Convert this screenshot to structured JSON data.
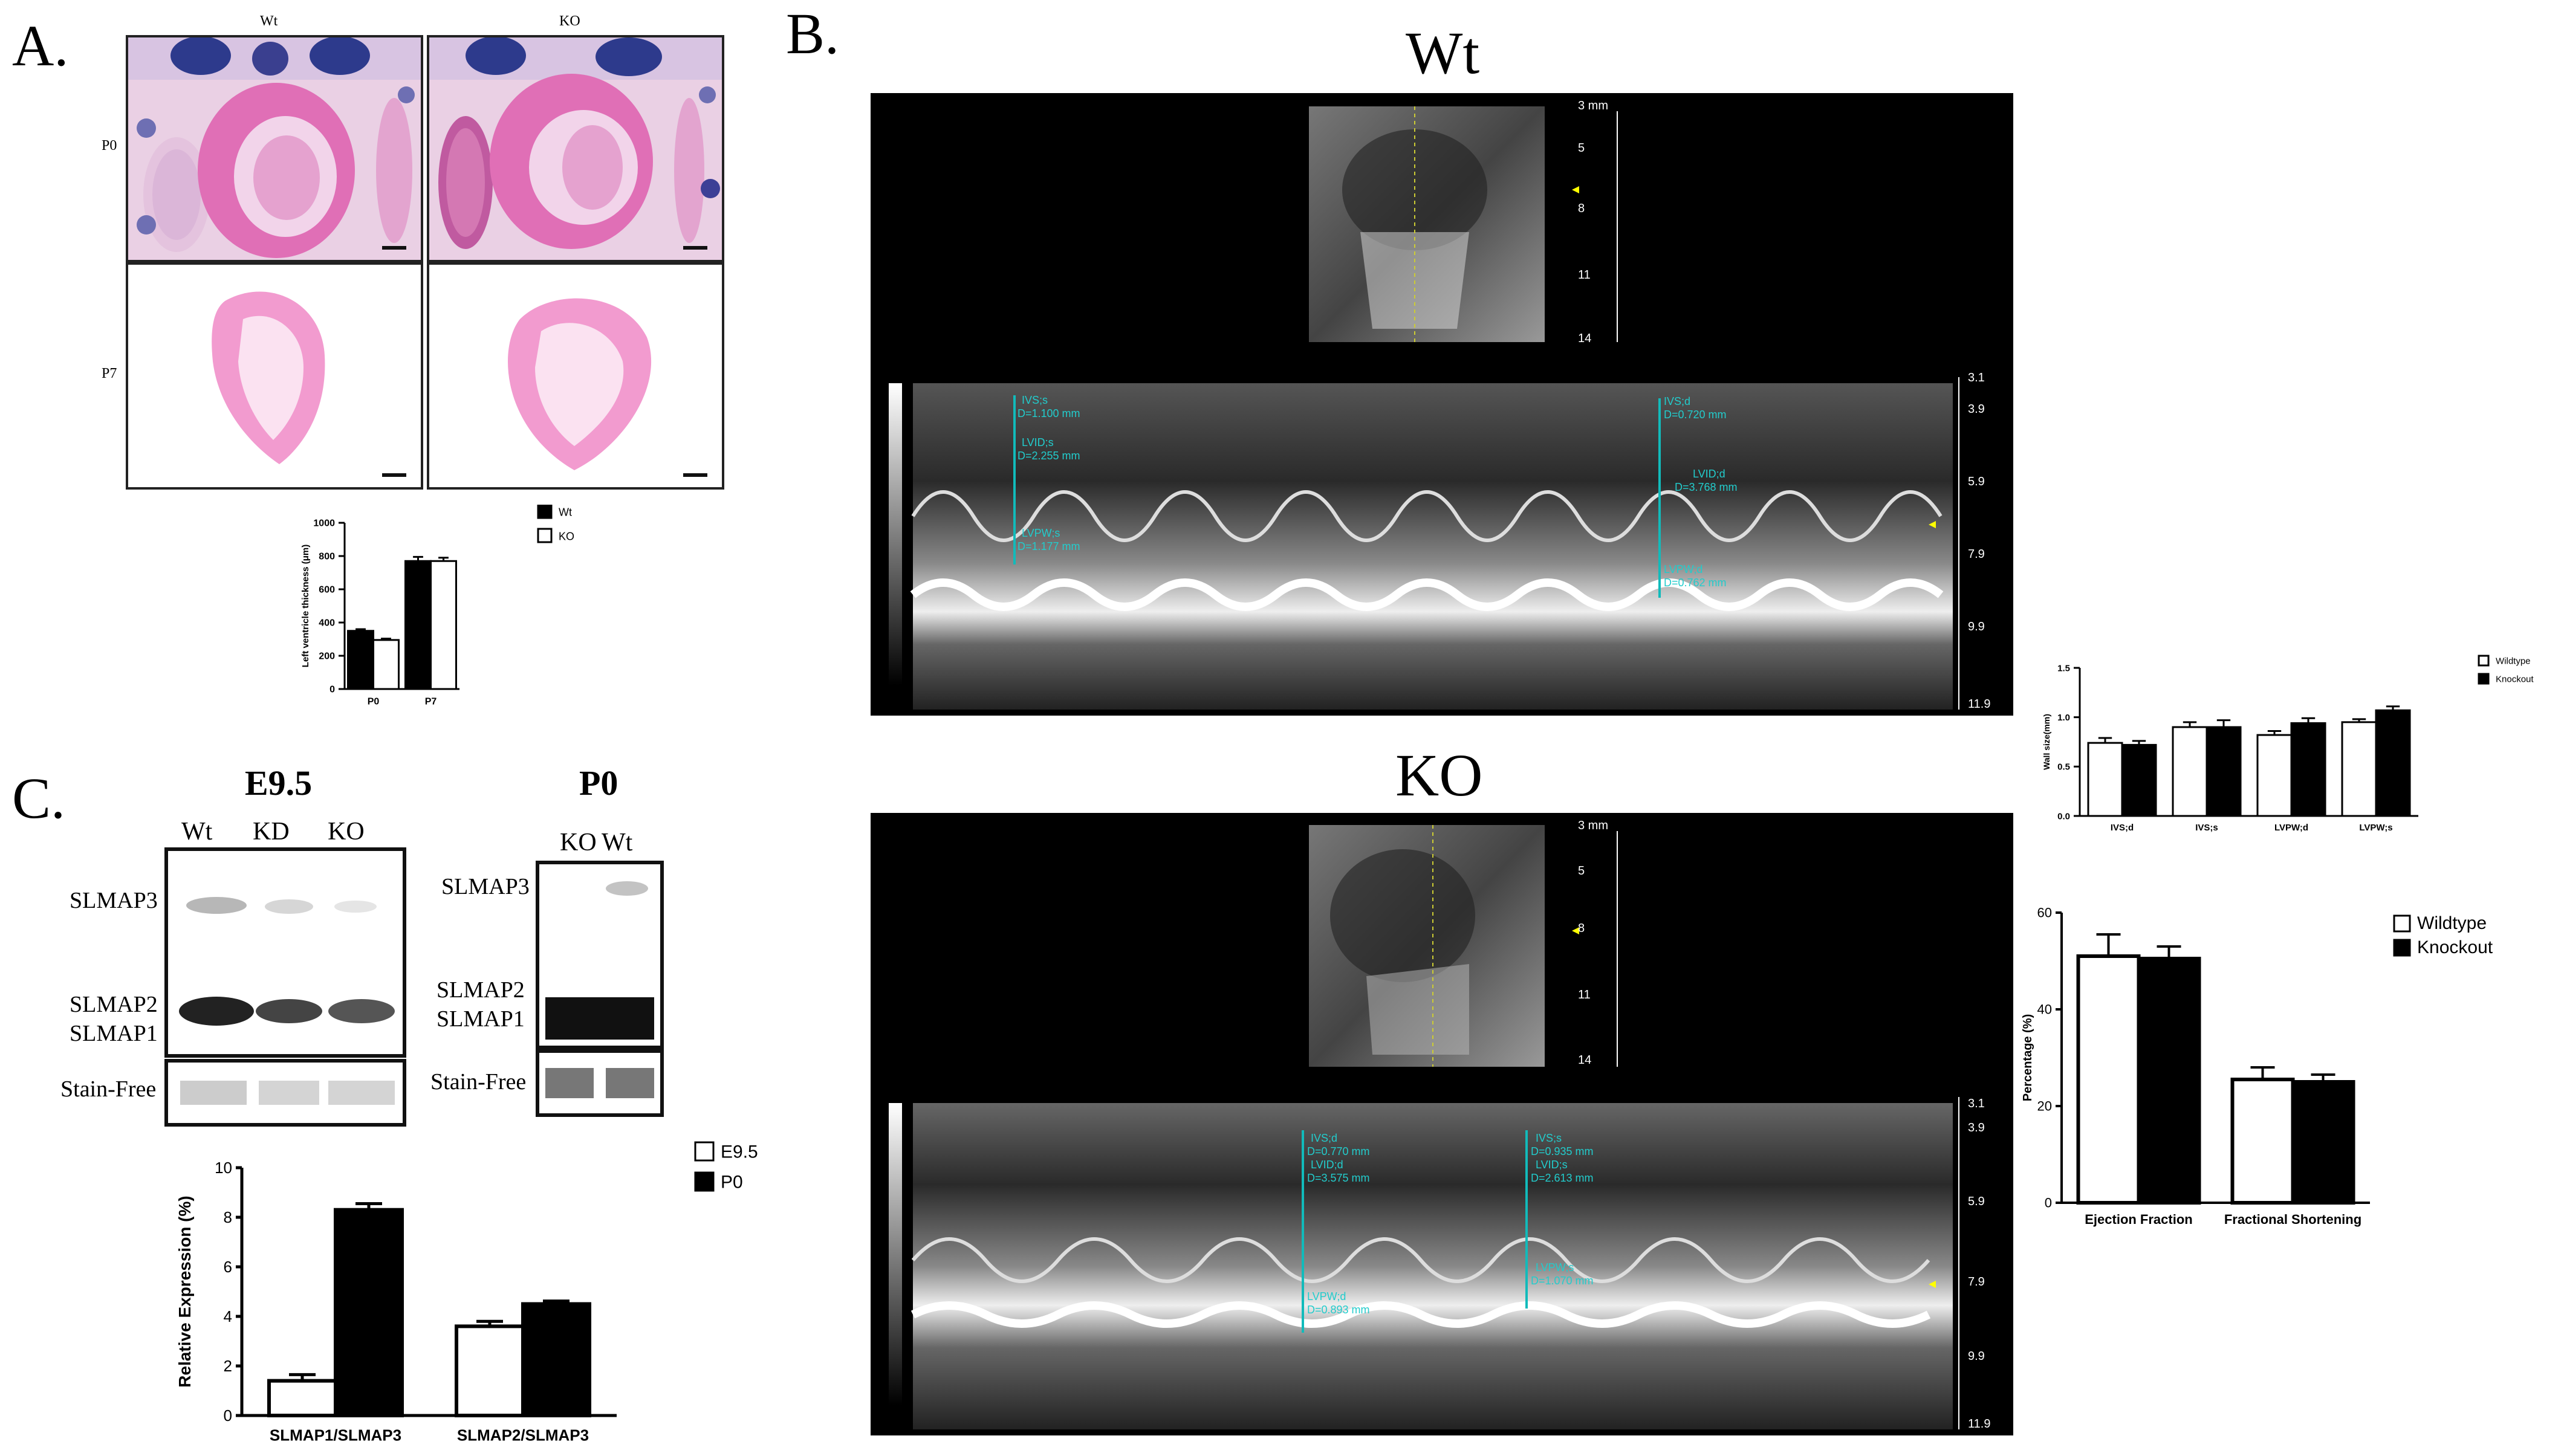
{
  "panelA": {
    "letter": "A.",
    "col_wt": "Wt",
    "col_ko": "KO",
    "row_p0": "P0",
    "row_p7": "P7",
    "chart_data": {
      "type": "bar",
      "categories": [
        "P0",
        "P7"
      ],
      "series": [
        {
          "name": "Wt",
          "values": [
            350,
            770
          ],
          "errors": [
            10,
            25
          ],
          "color": "#000000"
        },
        {
          "name": "KO",
          "values": [
            295,
            770
          ],
          "errors": [
            8,
            20
          ],
          "color": "#ffffff"
        }
      ],
      "ylabel": "Left ventricle thickness (μm)",
      "ylim": [
        0,
        1000
      ],
      "yticks": [
        0,
        200,
        400,
        600,
        800,
        1000
      ]
    }
  },
  "panelB": {
    "letter": "B.",
    "wt_title": "Wt",
    "ko_title": "KO",
    "wt_echo": {
      "bmode_scale": [
        "3 mm",
        "5",
        "8",
        "11",
        "14"
      ],
      "mmode_scale": [
        "3.1",
        "3.9",
        "5.9",
        "7.9",
        "9.9",
        "11.9"
      ],
      "measurements": [
        "IVS;s",
        "D=1.100 mm",
        "LVID;s",
        "D=2.255 mm",
        "LVPW;s",
        "D=1.177 mm",
        "IVS;d",
        "D=0.720 mm",
        "LVID;d",
        "D=3.768 mm",
        "LVPW;d",
        "D=0.762 mm"
      ]
    },
    "ko_echo": {
      "bmode_scale": [
        "3 mm",
        "5",
        "8",
        "11",
        "14"
      ],
      "mmode_scale": [
        "3.1",
        "3.9",
        "5.9",
        "7.9",
        "9.9",
        "11.9"
      ],
      "measurements": [
        "IVS;d",
        "D=0.770 mm",
        "LVID;d",
        "D=3.575 mm",
        "LVPW;d",
        "D=0.893 mm",
        "IVS;s",
        "D=0.935 mm",
        "LVID;s",
        "D=2.613 mm",
        "LVPW;s",
        "D=1.070 mm"
      ]
    },
    "wall_chart": {
      "type": "bar",
      "categories": [
        "IVS;d",
        "IVS;s",
        "LVPW;d",
        "LVPW;s"
      ],
      "series": [
        {
          "name": "Wildtype",
          "values": [
            0.74,
            0.9,
            0.82,
            0.95
          ],
          "errors": [
            0.05,
            0.05,
            0.04,
            0.03
          ],
          "color": "#ffffff"
        },
        {
          "name": "Knockout",
          "values": [
            0.72,
            0.9,
            0.94,
            1.07
          ],
          "errors": [
            0.04,
            0.07,
            0.05,
            0.04
          ],
          "color": "#000000"
        }
      ],
      "ylabel": "Wall size(mm)",
      "ylim": [
        0,
        1.5
      ],
      "yticks": [
        "0.0",
        "0.5",
        "1.0",
        "1.5"
      ]
    },
    "ef_chart": {
      "type": "bar",
      "categories": [
        "Ejection Fraction",
        "Fractional Shortening"
      ],
      "series": [
        {
          "name": "Wildtype",
          "values": [
            51,
            25.5
          ],
          "errors": [
            4.5,
            2.5
          ],
          "color": "#ffffff"
        },
        {
          "name": "Knockout",
          "values": [
            50.5,
            25
          ],
          "errors": [
            2.5,
            1.5
          ],
          "color": "#000000"
        }
      ],
      "ylabel": "Percentage (%)",
      "ylim": [
        0,
        60
      ],
      "yticks": [
        "0",
        "20",
        "40",
        "60"
      ]
    }
  },
  "panelC": {
    "letter": "C.",
    "e95_title": "E9.5",
    "p0_title": "P0",
    "e95_lanes": [
      "Wt",
      "KD",
      "KO"
    ],
    "p0_lanes": [
      "KO",
      "Wt"
    ],
    "band_slmap3": "SLMAP3",
    "band_slmap2": "SLMAP2",
    "band_slmap1": "SLMAP1",
    "stain_free": "Stain-Free",
    "chart_data": {
      "type": "bar",
      "categories": [
        "SLMAP1/SLMAP3",
        "SLMAP2/SLMAP3"
      ],
      "series": [
        {
          "name": "E9.5",
          "values": [
            1.4,
            3.6
          ],
          "errors": [
            0.25,
            0.2
          ],
          "color": "#ffffff"
        },
        {
          "name": "P0",
          "values": [
            8.3,
            4.5
          ],
          "errors": [
            0.25,
            0.12
          ],
          "color": "#000000"
        }
      ],
      "ylabel": "Relative Expression (%)",
      "ylim": [
        0,
        10
      ],
      "yticks": [
        "0",
        "2",
        "4",
        "6",
        "8",
        "10"
      ]
    }
  }
}
